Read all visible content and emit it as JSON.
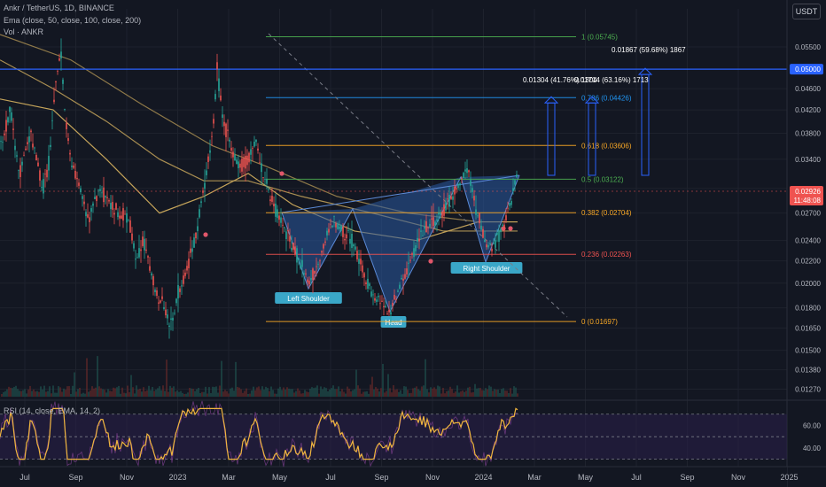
{
  "header": {
    "title": "Ankr / TetherUS, 1D, BINANCE",
    "ema": "Ema (close, 50, close, 100, close, 200)",
    "vol": "Vol · ANKR"
  },
  "currency_button": "USDT",
  "colors": {
    "background": "#131722",
    "up": "#26a69a",
    "down": "#ef5350",
    "ema": "#c5a45a",
    "pattern": "#2e5fa8",
    "blue_line": "#2962ff",
    "rsi": "#f0b63e",
    "grid": "#1e222d"
  },
  "chart_data": [
    {
      "type": "candlestick",
      "title": "Ankr / TetherUS, 1D, BINANCE",
      "price_axis_ticks": [
        "0.05500",
        "0.04600",
        "0.04200",
        "0.03800",
        "0.03400",
        "0.03000",
        "0.02700",
        "0.02400",
        "0.02200",
        "0.02000",
        "0.01800",
        "0.01650",
        "0.01500",
        "0.01380",
        "0.01270"
      ],
      "price_axis_ticks_values": [
        0.055,
        0.046,
        0.042,
        0.038,
        0.034,
        0.03,
        0.027,
        0.024,
        0.022,
        0.02,
        0.018,
        0.0165,
        0.015,
        0.0138,
        0.0127
      ],
      "y_scale": "log",
      "x_axis_ticks": [
        "Jul",
        "Sep",
        "Nov",
        "2023",
        "Mar",
        "May",
        "Jul",
        "Sep",
        "Nov",
        "2024",
        "Mar",
        "May",
        "Jul",
        "Sep",
        "Nov",
        "2025"
      ],
      "last_price_label": "0.02926",
      "countdown_label": "11:48:08",
      "level_label": "0.05000",
      "price_path": [
        [
          0,
          0.036
        ],
        [
          12,
          0.042
        ],
        [
          22,
          0.032
        ],
        [
          35,
          0.038
        ],
        [
          48,
          0.03
        ],
        [
          56,
          0.034
        ],
        [
          62,
          0.046
        ],
        [
          68,
          0.055
        ],
        [
          74,
          0.04
        ],
        [
          80,
          0.034
        ],
        [
          90,
          0.03
        ],
        [
          100,
          0.026
        ],
        [
          112,
          0.03
        ],
        [
          124,
          0.028
        ],
        [
          136,
          0.027
        ],
        [
          146,
          0.026
        ],
        [
          154,
          0.022
        ],
        [
          162,
          0.024
        ],
        [
          170,
          0.021
        ],
        [
          178,
          0.019
        ],
        [
          186,
          0.018
        ],
        [
          194,
          0.0165
        ],
        [
          200,
          0.019
        ],
        [
          210,
          0.021
        ],
        [
          220,
          0.024
        ],
        [
          230,
          0.03
        ],
        [
          240,
          0.038
        ],
        [
          245,
          0.05
        ],
        [
          252,
          0.04
        ],
        [
          260,
          0.036
        ],
        [
          270,
          0.033
        ],
        [
          280,
          0.034
        ],
        [
          288,
          0.037
        ],
        [
          296,
          0.032
        ],
        [
          306,
          0.029
        ],
        [
          316,
          0.026
        ],
        [
          328,
          0.024
        ],
        [
          338,
          0.022
        ],
        [
          348,
          0.02
        ],
        [
          356,
          0.021
        ],
        [
          366,
          0.024
        ],
        [
          376,
          0.026
        ],
        [
          388,
          0.025
        ],
        [
          398,
          0.024
        ],
        [
          410,
          0.021
        ],
        [
          420,
          0.019
        ],
        [
          432,
          0.0185
        ],
        [
          440,
          0.0175
        ],
        [
          448,
          0.019
        ],
        [
          458,
          0.021
        ],
        [
          468,
          0.023
        ],
        [
          478,
          0.025
        ],
        [
          490,
          0.026
        ],
        [
          500,
          0.027
        ],
        [
          510,
          0.029
        ],
        [
          520,
          0.031
        ],
        [
          528,
          0.033
        ],
        [
          536,
          0.028
        ],
        [
          544,
          0.025
        ],
        [
          552,
          0.023
        ],
        [
          560,
          0.024
        ],
        [
          570,
          0.026
        ],
        [
          578,
          0.029
        ],
        [
          584,
          0.032
        ]
      ],
      "ema_paths": [
        {
          "name": "ema50",
          "points": [
            [
              0,
              0.044
            ],
            [
              60,
              0.042
            ],
            [
              120,
              0.034
            ],
            [
              180,
              0.027
            ],
            [
              230,
              0.029
            ],
            [
              280,
              0.032
            ],
            [
              330,
              0.028
            ],
            [
              400,
              0.025
            ],
            [
              470,
              0.024
            ],
            [
              540,
              0.026
            ],
            [
              584,
              0.026
            ]
          ]
        },
        {
          "name": "ema100",
          "points": [
            [
              0,
              0.052
            ],
            [
              60,
              0.046
            ],
            [
              120,
              0.04
            ],
            [
              180,
              0.034
            ],
            [
              230,
              0.031
            ],
            [
              280,
              0.031
            ],
            [
              340,
              0.029
            ],
            [
              420,
              0.027
            ],
            [
              500,
              0.025
            ],
            [
              584,
              0.025
            ]
          ]
        },
        {
          "name": "ema200",
          "points": [
            [
              0,
              0.058
            ],
            [
              80,
              0.052
            ],
            [
              160,
              0.043
            ],
            [
              240,
              0.036
            ],
            [
              300,
              0.033
            ],
            [
              380,
              0.029
            ],
            [
              460,
              0.027
            ],
            [
              540,
              0.026
            ],
            [
              584,
              0.026
            ]
          ]
        }
      ],
      "fib_levels": [
        {
          "ratio": "1",
          "price": "0.05745",
          "value": 0.05745,
          "color": "#4caf50"
        },
        {
          "ratio": "0.786",
          "price": "0.04426",
          "value": 0.04426,
          "color": "#2196f3"
        },
        {
          "ratio": "0.618",
          "price": "0.03606",
          "value": 0.03606,
          "color": "#f9a825"
        },
        {
          "ratio": "0.5",
          "price": "0.03122",
          "value": 0.03122,
          "color": "#4caf50"
        },
        {
          "ratio": "0.382",
          "price": "0.02704",
          "value": 0.02704,
          "color": "#f9a825"
        },
        {
          "ratio": "0.236",
          "price": "0.02263",
          "value": 0.02263,
          "color": "#ef5350"
        },
        {
          "ratio": "0",
          "price": "0.01697",
          "value": 0.01697,
          "color": "#f9a825"
        }
      ],
      "fib_label_format": "{ratio} ({price})",
      "pattern_labels": {
        "left_shoulder": "Left Shoulder",
        "head": "Head",
        "right_shoulder": "Right Shoulder"
      },
      "targets": [
        {
          "text": "0.01304 (41.76%) 1304",
          "value": 0.01304
        },
        {
          "text": "0.01714 (63.16%) 1713",
          "value": 0.01714
        },
        {
          "text": "0.01867 (59.68%) 1867",
          "value": 0.01867
        }
      ]
    },
    {
      "type": "line",
      "title": "RSI (14, close, EMA, 14, 2)",
      "y_ticks": [
        "60.00",
        "40.00"
      ],
      "y_tick_values": [
        60,
        40
      ],
      "levels": [
        70,
        50,
        30
      ]
    }
  ]
}
